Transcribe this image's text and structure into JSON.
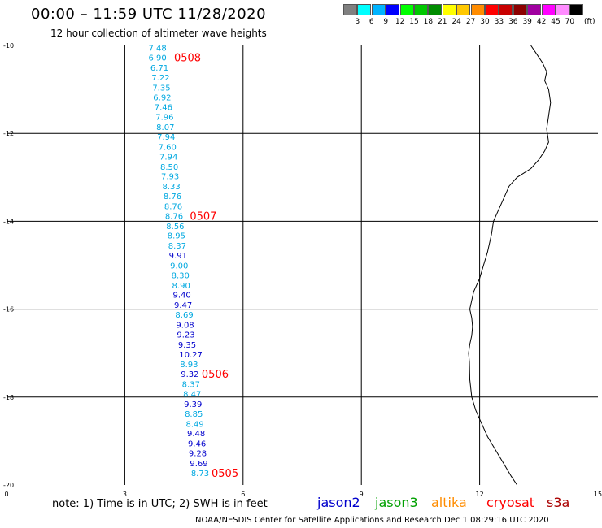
{
  "title": "00:00 – 11:59 UTC 11/28/2020",
  "subtitle": "12 hour collection of altimeter wave heights",
  "legend": {
    "colors": [
      "#808080",
      "#00ffff",
      "#00b4ff",
      "#0000ff",
      "#00ff00",
      "#00c800",
      "#008c00",
      "#ffff00",
      "#ffc800",
      "#ff8c00",
      "#ff0000",
      "#c80000",
      "#8c0000",
      "#a000a0",
      "#ff00ff",
      "#ff8cff",
      "#000000"
    ],
    "labels": [
      "3",
      "6",
      "9",
      "12",
      "15",
      "18",
      "21",
      "24",
      "27",
      "30",
      "33",
      "36",
      "39",
      "42",
      "45",
      "70"
    ],
    "unit": "(ft)"
  },
  "map": {
    "lon_range": [
      0,
      15
    ],
    "lat_range": [
      -20,
      -10
    ],
    "x_tick_labels": [
      "0",
      "3",
      "6",
      "9",
      "12",
      "15"
    ],
    "y_tick_labels": [
      "-10",
      "-12",
      "-14",
      "-16",
      "-18",
      "-20"
    ],
    "gridlines": true,
    "series_colors": {
      "jason2": "#0000cc",
      "jason3": "#00a000",
      "altika": "#ff8c00",
      "cryosat": "#ff0000",
      "s3a": "#aa0000"
    },
    "wave_heights": [
      {
        "text": "7.48",
        "lon": 3.6,
        "lat": -10.05,
        "color": "#00a8e0"
      },
      {
        "text": "6.90",
        "lon": 3.6,
        "lat": -10.27,
        "color": "#00a8e0"
      },
      {
        "text": "6.71",
        "lon": 3.65,
        "lat": -10.5,
        "color": "#00a8e0"
      },
      {
        "text": "7.22",
        "lon": 3.68,
        "lat": -10.72,
        "color": "#00a8e0"
      },
      {
        "text": "7.35",
        "lon": 3.7,
        "lat": -10.95,
        "color": "#00a8e0"
      },
      {
        "text": "6.92",
        "lon": 3.72,
        "lat": -11.17,
        "color": "#00a8e0"
      },
      {
        "text": "7.46",
        "lon": 3.75,
        "lat": -11.4,
        "color": "#00a8e0"
      },
      {
        "text": "7.96",
        "lon": 3.78,
        "lat": -11.62,
        "color": "#00a8e0"
      },
      {
        "text": "8.07",
        "lon": 3.8,
        "lat": -11.85,
        "color": "#00a8e0"
      },
      {
        "text": "7.94",
        "lon": 3.82,
        "lat": -12.07,
        "color": "#00a8e0"
      },
      {
        "text": "7.60",
        "lon": 3.85,
        "lat": -12.3,
        "color": "#00a8e0"
      },
      {
        "text": "7.94",
        "lon": 3.88,
        "lat": -12.52,
        "color": "#00a8e0"
      },
      {
        "text": "8.50",
        "lon": 3.9,
        "lat": -12.75,
        "color": "#00a8e0"
      },
      {
        "text": "7.93",
        "lon": 3.92,
        "lat": -12.97,
        "color": "#00a8e0"
      },
      {
        "text": "8.33",
        "lon": 3.95,
        "lat": -13.2,
        "color": "#00a8e0"
      },
      {
        "text": "8.76",
        "lon": 3.98,
        "lat": -13.42,
        "color": "#00a8e0"
      },
      {
        "text": "8.76",
        "lon": 4.0,
        "lat": -13.65,
        "color": "#00a8e0"
      },
      {
        "text": "8.76",
        "lon": 4.02,
        "lat": -13.87,
        "color": "#00a8e0"
      },
      {
        "text": "8.56",
        "lon": 4.05,
        "lat": -14.1,
        "color": "#00a8e0"
      },
      {
        "text": "8.95",
        "lon": 4.08,
        "lat": -14.32,
        "color": "#00a8e0"
      },
      {
        "text": "8.37",
        "lon": 4.1,
        "lat": -14.55,
        "color": "#00a8e0"
      },
      {
        "text": "9.91",
        "lon": 4.12,
        "lat": -14.77,
        "color": "#0000cc"
      },
      {
        "text": "9.00",
        "lon": 4.15,
        "lat": -15.0,
        "color": "#00a8e0"
      },
      {
        "text": "8.30",
        "lon": 4.18,
        "lat": -15.22,
        "color": "#00a8e0"
      },
      {
        "text": "8.90",
        "lon": 4.2,
        "lat": -15.45,
        "color": "#00a8e0"
      },
      {
        "text": "9.40",
        "lon": 4.22,
        "lat": -15.67,
        "color": "#0000cc"
      },
      {
        "text": "9.47",
        "lon": 4.25,
        "lat": -15.9,
        "color": "#0000cc"
      },
      {
        "text": "8.69",
        "lon": 4.28,
        "lat": -16.12,
        "color": "#00a8e0"
      },
      {
        "text": "9.08",
        "lon": 4.3,
        "lat": -16.35,
        "color": "#0000cc"
      },
      {
        "text": "9.23",
        "lon": 4.32,
        "lat": -16.57,
        "color": "#0000cc"
      },
      {
        "text": "9.35",
        "lon": 4.35,
        "lat": -16.8,
        "color": "#0000cc"
      },
      {
        "text": "10.27",
        "lon": 4.38,
        "lat": -17.02,
        "color": "#0000cc"
      },
      {
        "text": "8.93",
        "lon": 4.4,
        "lat": -17.25,
        "color": "#00a8e0"
      },
      {
        "text": "9.32",
        "lon": 4.42,
        "lat": -17.47,
        "color": "#0000cc"
      },
      {
        "text": "8.37",
        "lon": 4.45,
        "lat": -17.7,
        "color": "#00a8e0"
      },
      {
        "text": "8.47",
        "lon": 4.48,
        "lat": -17.92,
        "color": "#00a8e0"
      },
      {
        "text": "9.39",
        "lon": 4.5,
        "lat": -18.15,
        "color": "#0000cc"
      },
      {
        "text": "8.85",
        "lon": 4.52,
        "lat": -18.37,
        "color": "#00a8e0"
      },
      {
        "text": "8.49",
        "lon": 4.55,
        "lat": -18.6,
        "color": "#00a8e0"
      },
      {
        "text": "9.48",
        "lon": 4.58,
        "lat": -18.82,
        "color": "#0000cc"
      },
      {
        "text": "9.46",
        "lon": 4.6,
        "lat": -19.05,
        "color": "#0000cc"
      },
      {
        "text": "9.28",
        "lon": 4.62,
        "lat": -19.27,
        "color": "#0000cc"
      },
      {
        "text": "9.69",
        "lon": 4.65,
        "lat": -19.5,
        "color": "#0000cc"
      },
      {
        "text": "8.73",
        "lon": 4.68,
        "lat": -19.72,
        "color": "#00a8e0"
      }
    ],
    "time_labels": [
      {
        "text": "0508",
        "lon": 4.25,
        "lat": -10.27
      },
      {
        "text": "0507",
        "lon": 4.65,
        "lat": -13.87
      },
      {
        "text": "0506",
        "lon": 4.95,
        "lat": -17.47
      },
      {
        "text": "0505",
        "lon": 5.2,
        "lat": -19.72
      }
    ],
    "coastline": [
      [
        13.3,
        -10.0
      ],
      [
        13.45,
        -10.2
      ],
      [
        13.6,
        -10.4
      ],
      [
        13.7,
        -10.6
      ],
      [
        13.65,
        -10.8
      ],
      [
        13.75,
        -11.0
      ],
      [
        13.8,
        -11.3
      ],
      [
        13.75,
        -11.6
      ],
      [
        13.7,
        -11.9
      ],
      [
        13.75,
        -12.2
      ],
      [
        13.65,
        -12.4
      ],
      [
        13.5,
        -12.6
      ],
      [
        13.3,
        -12.8
      ],
      [
        12.95,
        -13.0
      ],
      [
        12.75,
        -13.2
      ],
      [
        12.6,
        -13.5
      ],
      [
        12.45,
        -13.8
      ],
      [
        12.35,
        -14.0
      ],
      [
        12.3,
        -14.3
      ],
      [
        12.2,
        -14.7
      ],
      [
        12.1,
        -15.0
      ],
      [
        12.0,
        -15.3
      ],
      [
        11.85,
        -15.6
      ],
      [
        11.8,
        -15.8
      ],
      [
        11.75,
        -16.0
      ],
      [
        11.8,
        -16.2
      ],
      [
        11.82,
        -16.4
      ],
      [
        11.8,
        -16.6
      ],
      [
        11.75,
        -16.8
      ],
      [
        11.72,
        -17.0
      ],
      [
        11.74,
        -17.2
      ],
      [
        11.75,
        -17.6
      ],
      [
        11.8,
        -18.0
      ],
      [
        11.9,
        -18.3
      ],
      [
        12.05,
        -18.6
      ],
      [
        12.2,
        -18.9
      ],
      [
        12.4,
        -19.2
      ],
      [
        12.6,
        -19.5
      ],
      [
        12.8,
        -19.8
      ],
      [
        12.95,
        -20.0
      ]
    ]
  },
  "note": "note:  1) Time is in UTC;  2) SWH is in feet",
  "satellites": [
    {
      "name": "jason2",
      "color": "#0000cc"
    },
    {
      "name": "jason3",
      "color": "#00a000"
    },
    {
      "name": "altika",
      "color": "#ff8c00"
    },
    {
      "name": "cryosat",
      "color": "#ff0000"
    },
    {
      "name": "s3a",
      "color": "#aa0000"
    }
  ],
  "credit": "NOAA/NESDIS Center for Satellite Applications and Research     Dec  1 08:29:16 UTC 2020"
}
